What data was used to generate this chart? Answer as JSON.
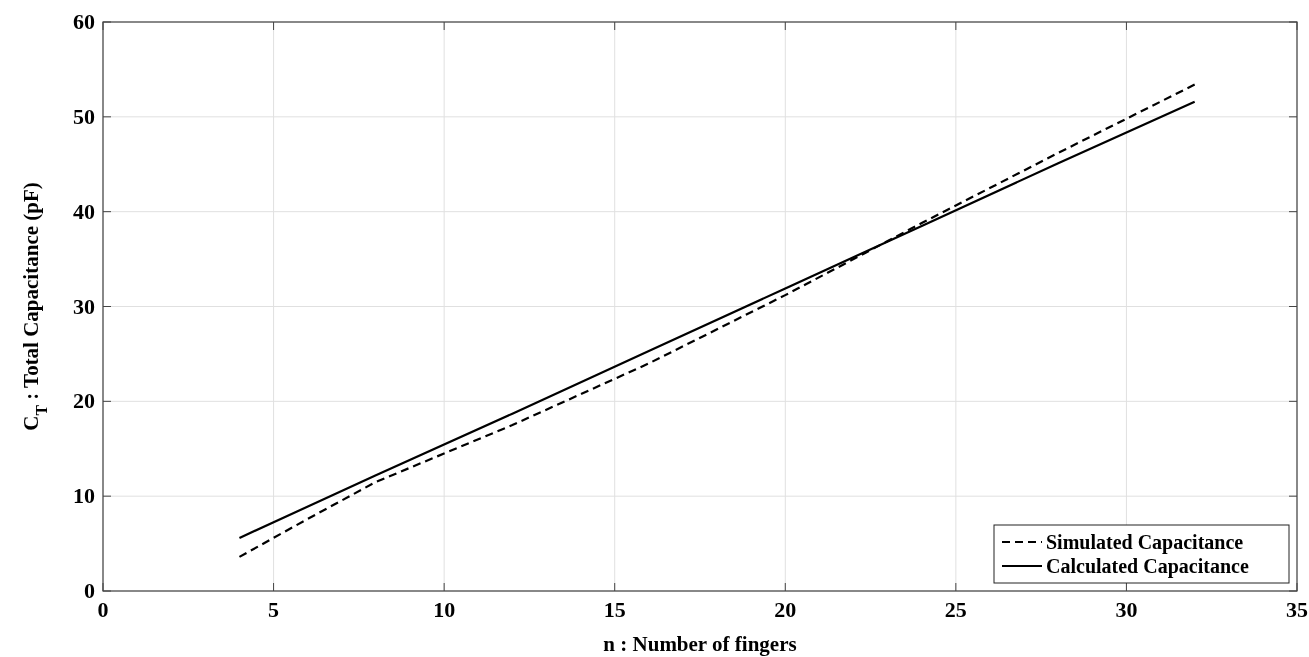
{
  "chart_data": {
    "type": "line",
    "xlabel": "n : Number of fingers",
    "ylabel": "C$_{T}$ : Total Capacitance (pF)",
    "xlim": [
      0,
      35
    ],
    "xticks": [
      0,
      5,
      10,
      15,
      20,
      25,
      30,
      35
    ],
    "ylim": [
      0,
      60
    ],
    "yticks": [
      0,
      10,
      20,
      30,
      40,
      50,
      60
    ],
    "grid": true,
    "legend": "bottom right",
    "series": [
      {
        "name": "Simulated Capacitance",
        "color": "#000000",
        "line_style": "dashed",
        "x": [
          4,
          6,
          8,
          12,
          16,
          20,
          24,
          28,
          32
        ],
        "values": [
          3.6,
          7.6,
          11.5,
          17.5,
          24,
          31.2,
          38.8,
          46.2,
          53.4
        ]
      },
      {
        "name": "Calculated Capacitance",
        "color": "#000000",
        "line_style": "solid",
        "x": [
          4,
          8,
          12,
          16,
          20,
          24,
          28,
          32
        ],
        "values": [
          5.6,
          12.2,
          18.7,
          25.3,
          31.9,
          38.5,
          45.1,
          51.6
        ]
      }
    ]
  }
}
